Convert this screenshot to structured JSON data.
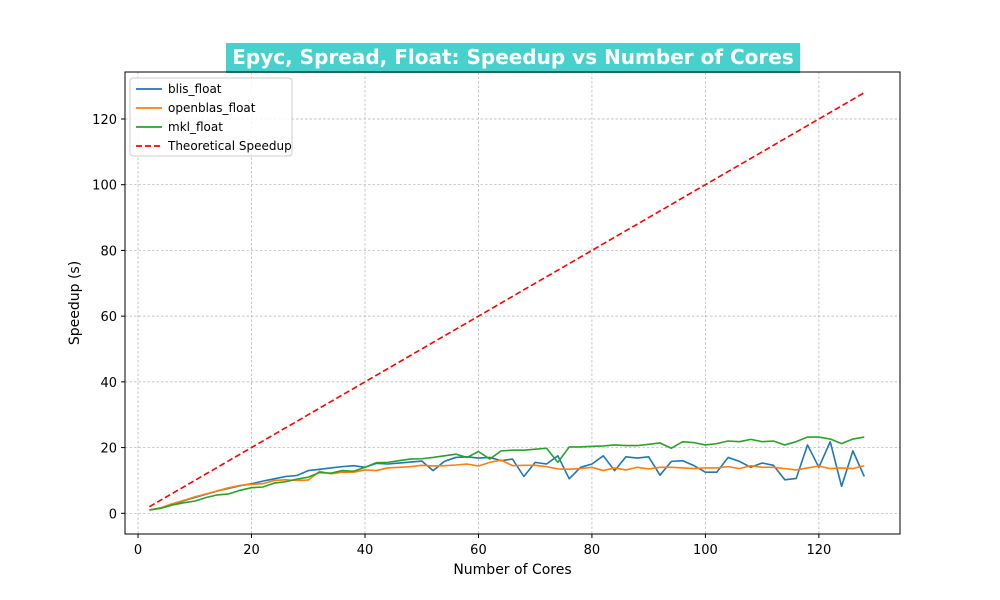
{
  "chart_data": {
    "type": "line",
    "title": "Epyc, Spread, Float: Speedup vs Number of Cores",
    "title_background": "#48d1cc",
    "xlabel": "Number of Cores",
    "ylabel": "Speedup (s)",
    "xlim": [
      -2.3,
      134.3
    ],
    "ylim": [
      -6.3,
      134.3
    ],
    "xticks": [
      0,
      20,
      40,
      60,
      80,
      100,
      120
    ],
    "yticks": [
      0,
      20,
      40,
      60,
      80,
      100,
      120
    ],
    "grid": true,
    "legend_position": "top-left",
    "x": [
      2,
      4,
      6,
      8,
      10,
      12,
      14,
      16,
      18,
      20,
      22,
      24,
      26,
      28,
      30,
      32,
      34,
      36,
      38,
      40,
      42,
      44,
      46,
      48,
      50,
      52,
      54,
      56,
      58,
      60,
      62,
      64,
      66,
      68,
      70,
      72,
      74,
      76,
      78,
      80,
      82,
      84,
      86,
      88,
      90,
      92,
      94,
      96,
      98,
      100,
      102,
      104,
      106,
      108,
      110,
      112,
      114,
      116,
      118,
      120,
      122,
      124,
      126,
      128
    ],
    "series": [
      {
        "name": "blis_float",
        "color": "#1f77b4",
        "dashed": false,
        "values": [
          1.0,
          1.6,
          2.6,
          3.8,
          4.8,
          5.8,
          6.8,
          7.6,
          8.4,
          9.0,
          9.8,
          10.5,
          11.2,
          11.5,
          13.0,
          13.4,
          13.8,
          14.2,
          14.5,
          14.0,
          15.2,
          15.0,
          15.3,
          15.6,
          15.9,
          13.0,
          15.8,
          17.0,
          17.2,
          16.8,
          17.0,
          16.0,
          16.5,
          11.2,
          15.5,
          15.0,
          17.5,
          10.5,
          14.0,
          15.0,
          17.5,
          13.0,
          17.2,
          16.8,
          17.2,
          11.6,
          15.8,
          16.0,
          14.5,
          12.5,
          12.5,
          17.0,
          15.8,
          14.0,
          15.3,
          14.6,
          10.2,
          10.6,
          20.8,
          14.0,
          21.8,
          8.2,
          19.0,
          11.2
        ]
      },
      {
        "name": "openblas_float",
        "color": "#ff7f0e",
        "dashed": false,
        "values": [
          1.0,
          1.7,
          2.9,
          3.9,
          5.0,
          5.9,
          6.8,
          7.8,
          8.5,
          8.8,
          9.0,
          10.0,
          10.2,
          10.0,
          10.1,
          12.8,
          12.0,
          12.5,
          12.5,
          13.2,
          13.0,
          13.8,
          14.0,
          14.2,
          14.6,
          14.4,
          14.5,
          14.7,
          15.0,
          14.4,
          15.5,
          16.2,
          14.5,
          14.6,
          14.6,
          14.2,
          13.5,
          13.4,
          13.6,
          14.0,
          13.0,
          13.8,
          13.2,
          14.0,
          13.5,
          14.0,
          14.0,
          13.8,
          13.6,
          13.8,
          13.8,
          14.2,
          13.6,
          14.5,
          14.0,
          14.0,
          13.6,
          13.2,
          13.8,
          14.4,
          13.6,
          13.8,
          13.6,
          14.5
        ]
      },
      {
        "name": "mkl_float",
        "color": "#2ca02c",
        "dashed": false,
        "values": [
          1.0,
          1.5,
          2.5,
          3.2,
          3.7,
          4.8,
          5.6,
          5.9,
          7.0,
          7.8,
          8.0,
          9.2,
          9.6,
          10.4,
          11.0,
          12.4,
          12.2,
          13.0,
          12.8,
          14.0,
          15.4,
          15.5,
          16.0,
          16.5,
          16.6,
          17.0,
          17.5,
          18.0,
          17.0,
          18.8,
          16.5,
          19.0,
          19.2,
          19.2,
          19.5,
          19.8,
          15.5,
          20.2,
          20.2,
          20.4,
          20.5,
          20.8,
          20.6,
          20.6,
          21.0,
          21.4,
          19.8,
          21.8,
          21.5,
          20.8,
          21.2,
          22.0,
          21.8,
          22.5,
          21.8,
          22.0,
          20.8,
          21.8,
          23.2,
          23.2,
          22.6,
          21.2,
          22.6,
          23.2
        ]
      },
      {
        "name": "Theoretical Speedup",
        "color": "#ff0000",
        "dashed": true,
        "values": [
          2,
          4,
          6,
          8,
          10,
          12,
          14,
          16,
          18,
          20,
          22,
          24,
          26,
          28,
          30,
          32,
          34,
          36,
          38,
          40,
          42,
          44,
          46,
          48,
          50,
          52,
          54,
          56,
          58,
          60,
          62,
          64,
          66,
          68,
          70,
          72,
          74,
          76,
          78,
          80,
          82,
          84,
          86,
          88,
          90,
          92,
          94,
          96,
          98,
          100,
          102,
          104,
          106,
          108,
          110,
          112,
          114,
          116,
          118,
          120,
          122,
          124,
          126,
          128
        ]
      }
    ]
  }
}
